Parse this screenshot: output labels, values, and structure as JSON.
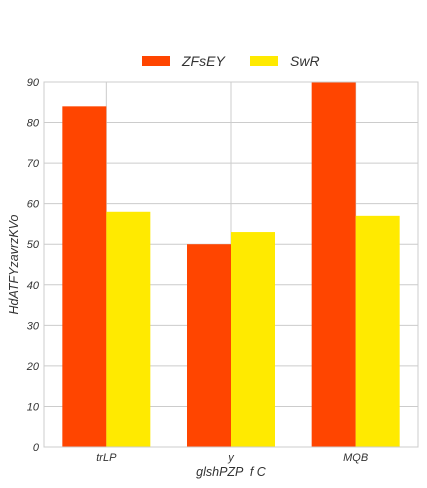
{
  "chart_data": {
    "type": "bar",
    "categories": [
      "trLP",
      "y",
      "MQB"
    ],
    "series": [
      {
        "name": "ZFsEY",
        "values": [
          84,
          50,
          90
        ],
        "color": "#ff4500"
      },
      {
        "name": "SwR",
        "values": [
          58,
          53,
          57
        ],
        "color": "#ffea00"
      }
    ],
    "title": "",
    "xlabel": "glshPZP  f C",
    "ylabel": "HdATFYzavrzKVo",
    "ylim": [
      0,
      90
    ],
    "yticks": [
      0,
      10,
      20,
      30,
      40,
      50,
      60,
      70,
      80,
      90
    ],
    "grid": true,
    "legend_position": "top-center"
  }
}
